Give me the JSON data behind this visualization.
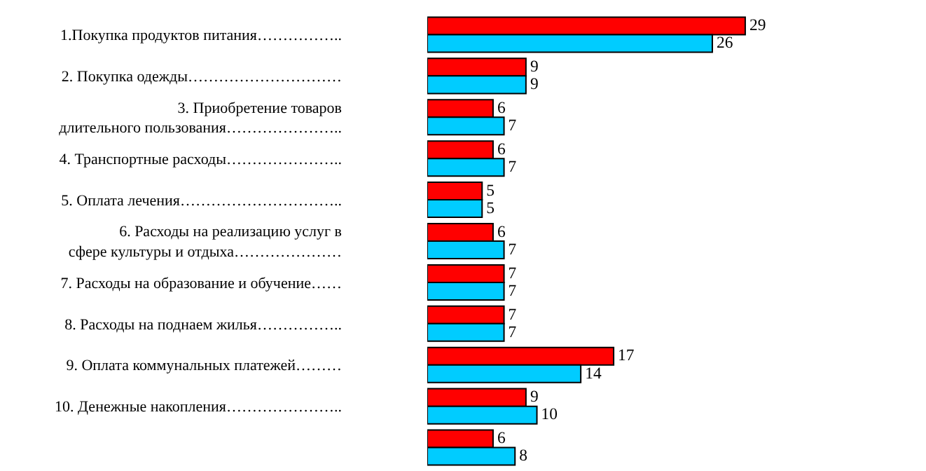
{
  "chart_data": {
    "type": "bar",
    "orientation": "horizontal",
    "categories": [
      "1.Покупка продуктов питания……………..",
      "2. Покупка одежды…………………………",
      "3. Приобретение товаров\nдлительного пользования…………………..",
      "4. Транспортные расходы…………………..",
      "5. Оплата лечения…………………………..",
      "6. Расходы на реализацию услуг в\n сфере культуры и отдыха…………………",
      "7. Расходы на образование и обучение……",
      "8. Расходы на поднаем жилья……………..",
      "9. Оплата коммунальных платежей………",
      "10. Денежные накопления…………………..",
      null
    ],
    "series": [
      {
        "color": "#ff0000",
        "values": [
          29,
          9,
          6,
          6,
          5,
          6,
          7,
          7,
          17,
          9,
          6
        ]
      },
      {
        "color": "#00ccff",
        "values": [
          26,
          9,
          7,
          7,
          5,
          7,
          7,
          7,
          14,
          10,
          8
        ]
      }
    ],
    "data_labels": true,
    "tick_labels": "y"
  }
}
